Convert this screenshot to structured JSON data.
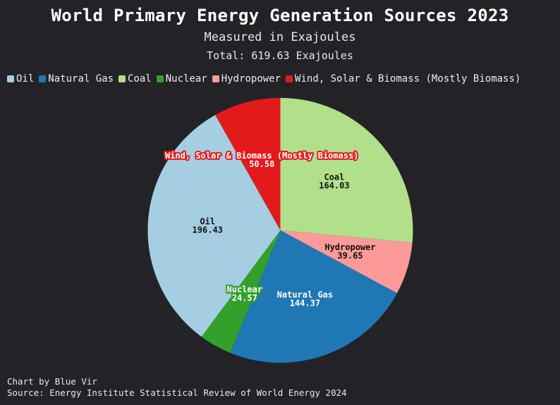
{
  "header": {
    "title": "World Primary Energy Generation Sources 2023",
    "subtitle": "Measured in Exajoules",
    "total": "Total: 619.63 Exajoules"
  },
  "footer": {
    "credit": "Chart by Blue Vir",
    "source": "Source: Energy Institute Statistical Review of World Energy 2024"
  },
  "chart_data": {
    "type": "pie",
    "title": "World Primary Energy Generation Sources 2023",
    "subtitle": "Measured in Exajoules",
    "total": 619.63,
    "legend_position": "top-left",
    "start": "12 o'clock",
    "direction": "clockwise",
    "slices": [
      {
        "label": "Coal",
        "value": 164.03,
        "value_label": "164.03",
        "color": "#b2df8a",
        "text_color": "#111111"
      },
      {
        "label": "Hydropower",
        "value": 39.65,
        "value_label": "39.65",
        "color": "#fb9a99",
        "text_color": "#111111"
      },
      {
        "label": "Natural Gas",
        "value": 144.37,
        "value_label": "144.37",
        "color": "#1f78b4",
        "text_color": "#ffffff"
      },
      {
        "label": "Nuclear",
        "value": 24.57,
        "value_label": "24.57",
        "color": "#33a02c",
        "text_color": "#ffffff"
      },
      {
        "label": "Oil",
        "value": 196.43,
        "value_label": "196.43",
        "color": "#a6cee3",
        "text_color": "#111111"
      },
      {
        "label": "Wind, Solar & Biomass (Mostly Biomass)",
        "value": 50.58,
        "value_label": "50.58",
        "color": "#e31a1c",
        "text_color": "#ffffff"
      }
    ],
    "legend_order": [
      "Oil",
      "Natural Gas",
      "Coal",
      "Nuclear",
      "Hydropower",
      "Wind, Solar & Biomass (Mostly Biomass)"
    ]
  }
}
